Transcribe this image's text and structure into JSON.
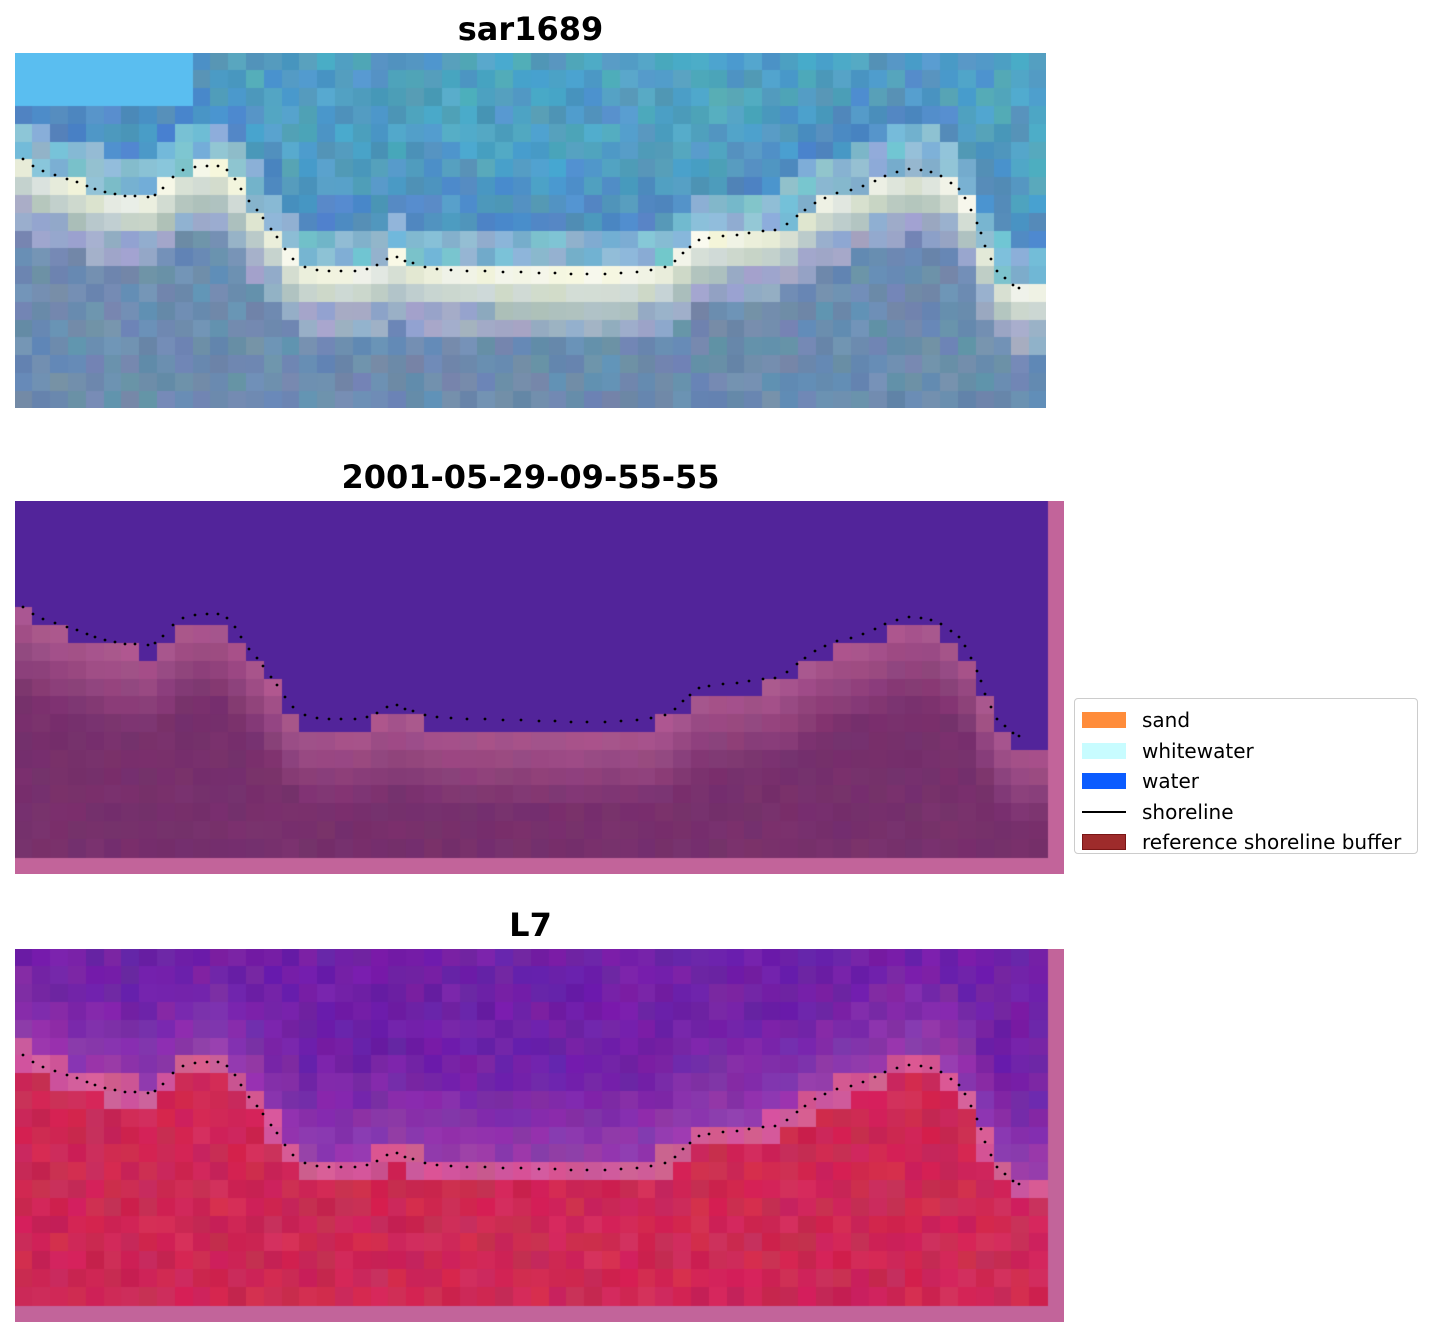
{
  "panels": [
    {
      "title": "sar1689"
    },
    {
      "title": "2001-05-29-09-55-55"
    },
    {
      "title": "L7"
    }
  ],
  "legend": {
    "items": [
      {
        "label": "sand",
        "type": "patch",
        "color": "#ff8c3a"
      },
      {
        "label": "whitewater",
        "type": "patch",
        "color": "#c8fcff"
      },
      {
        "label": "water",
        "type": "patch",
        "color": "#0b5cff"
      },
      {
        "label": "shoreline",
        "type": "line",
        "color": "#000000"
      },
      {
        "label": "reference shoreline buffer",
        "type": "patch",
        "color": "#9e2b2b",
        "edge": "#7a1515"
      }
    ]
  },
  "colors": {
    "shoreline_dots": "#000000",
    "buffer_overlay": "#c2649a",
    "class_water_overlay": "#52249a",
    "class_land_overlay": "#7a2f6a"
  }
}
